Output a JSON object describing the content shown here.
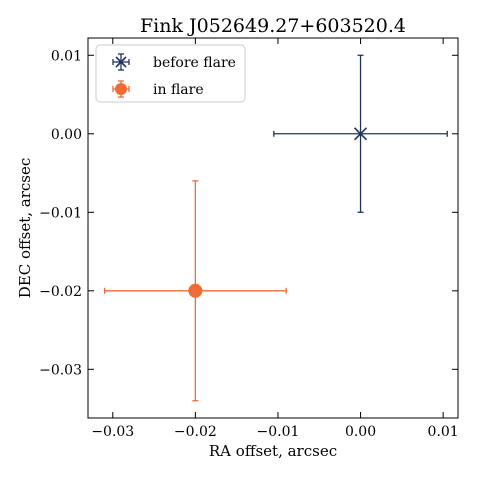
{
  "chart_data": {
    "type": "scatter",
    "title": "Fink J052649.27+603520.4",
    "xlabel": "RA offset, arcsec",
    "ylabel": "DEC offset, arcsec",
    "xlim": [
      -0.033,
      0.0118
    ],
    "ylim": [
      -0.0362,
      0.0122
    ],
    "xticks": [
      -0.03,
      -0.02,
      -0.01,
      0.0,
      0.01
    ],
    "xtick_labels": [
      "−0.03",
      "−0.02",
      "−0.01",
      "0.00",
      "0.01"
    ],
    "yticks": [
      0.01,
      0.0,
      -0.01,
      -0.02,
      -0.03
    ],
    "ytick_labels": [
      "0.01",
      "0.00",
      "−0.01",
      "−0.02",
      "−0.03"
    ],
    "grid": false,
    "legend_position": "upper-left",
    "series": [
      {
        "name": "before flare",
        "marker": "x",
        "color": "#1f3461",
        "x": 0.0,
        "y": 0.0,
        "xerr": 0.0105,
        "yerr": 0.01
      },
      {
        "name": "in flare",
        "marker": "o",
        "color": "#f26a35",
        "x": -0.02,
        "y": -0.02,
        "xerr": 0.011,
        "yerr": 0.014
      }
    ]
  }
}
